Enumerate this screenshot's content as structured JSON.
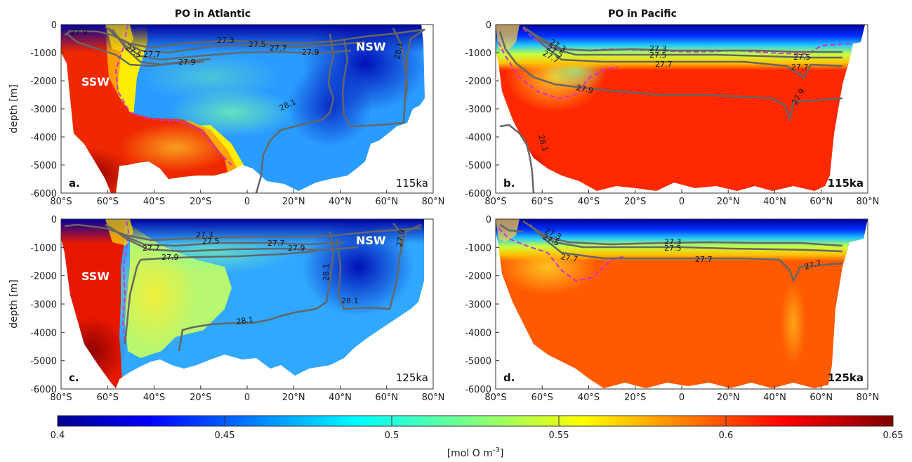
{
  "colors": {
    "colormap": "jet",
    "isopycnal": "#666666",
    "boundary": "#cc33cc",
    "background": "#ffffff"
  },
  "colorbar": {
    "min": 0.4,
    "max": 0.65,
    "ticks": [
      "0.4",
      "0.45",
      "0.5",
      "0.55",
      "0.6",
      "0.65"
    ],
    "label": "[mol O m",
    "label_sup": "-3",
    "label_end": "]"
  },
  "chart_data": [
    {
      "type": "heatmap",
      "panel": "a.",
      "title": "PO in Atlantic",
      "age": "115ka",
      "ylabel": "depth [m]",
      "xlim": [
        -80,
        80
      ],
      "ylim": [
        -6000,
        0
      ],
      "xticks": [
        "80°S",
        "60°S",
        "40°S",
        "20°S",
        "0",
        "20°N",
        "40°N",
        "60°N",
        "80°N"
      ],
      "yticks": [
        "0",
        "-1000",
        "-2000",
        "-3000",
        "-4000",
        "-5000",
        "-6000"
      ],
      "water_masses": [
        "SSW",
        "NSW"
      ],
      "isopycnal_labels": [
        "27.9",
        "27.5",
        "27.7",
        "27.3",
        "27.5",
        "27.9",
        "27.7",
        "27.9",
        "28.1",
        "28.1"
      ]
    },
    {
      "type": "heatmap",
      "panel": "b.",
      "title": "PO in Pacific",
      "age": "115ka",
      "xlim": [
        -80,
        80
      ],
      "ylim": [
        -6000,
        0
      ],
      "xticks": [
        "80°S",
        "60°S",
        "40°S",
        "20°S",
        "0",
        "20°N",
        "40°N",
        "60°N",
        "80°N"
      ],
      "yticks": [
        "0",
        "-1000",
        "-2000",
        "-3000",
        "-4000",
        "-5000",
        "-6000"
      ],
      "isopycnal_labels": [
        "27.3",
        "27.5",
        "27.7",
        "27.3",
        "27.5",
        "27.5",
        "27.7",
        "27.7",
        "27.9",
        "27.9",
        "28.1"
      ]
    },
    {
      "type": "heatmap",
      "panel": "c.",
      "age": "125ka",
      "ylabel": "depth [m]",
      "xlim": [
        -80,
        80
      ],
      "ylim": [
        -6000,
        0
      ],
      "xticks": [
        "80°S",
        "60°S",
        "40°S",
        "20°S",
        "0",
        "20°N",
        "40°N",
        "60°N",
        "80°N"
      ],
      "yticks": [
        "0",
        "-1000",
        "-2000",
        "-3000",
        "-4000",
        "-5000",
        "-6000"
      ],
      "water_masses": [
        "SSW",
        "NSW"
      ],
      "isopycnal_labels": [
        "27.3",
        "27.5",
        "27.7",
        "27.7",
        "27.9",
        "27.9",
        "28.1",
        "28.1",
        "28.1",
        "27.9"
      ]
    },
    {
      "type": "heatmap",
      "panel": "d.",
      "age": "125ka",
      "xlim": [
        -80,
        80
      ],
      "ylim": [
        -6000,
        0
      ],
      "xticks": [
        "80°S",
        "60°S",
        "40°S",
        "20°S",
        "0",
        "20°N",
        "40°N",
        "60°N",
        "80°N"
      ],
      "yticks": [
        "0",
        "-1000",
        "-2000",
        "-3000",
        "-4000",
        "-5000",
        "-6000"
      ],
      "isopycnal_labels": [
        "27.3",
        "27.5",
        "27.7",
        "27.3",
        "27.5",
        "27.7",
        "27.7"
      ]
    }
  ]
}
